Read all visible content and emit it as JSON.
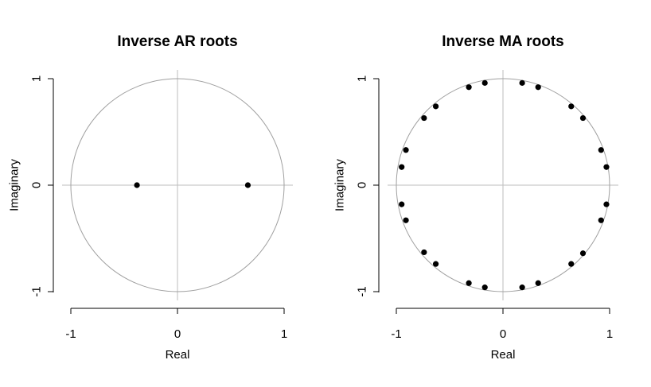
{
  "chart_data": [
    {
      "type": "scatter",
      "title": "Inverse AR roots",
      "xlabel": "Real",
      "ylabel": "Imaginary",
      "xlim": [
        -1,
        1
      ],
      "ylim": [
        -1,
        1
      ],
      "x_ticks": [
        "-1",
        "0",
        "1"
      ],
      "y_ticks": [
        "-1",
        "0",
        "1"
      ],
      "unit_circle": true,
      "reference_lines": true,
      "colors": {
        "points": "#000000",
        "circle": "#a0a0a0",
        "axes": "#000000"
      },
      "points": [
        {
          "x": -0.38,
          "y": 0.0
        },
        {
          "x": 0.66,
          "y": 0.0
        }
      ]
    },
    {
      "type": "scatter",
      "title": "Inverse MA roots",
      "xlabel": "Real",
      "ylabel": "Imaginary",
      "xlim": [
        -1,
        1
      ],
      "ylim": [
        -1,
        1
      ],
      "x_ticks": [
        "-1",
        "0",
        "1"
      ],
      "y_ticks": [
        "-1",
        "0",
        "1"
      ],
      "unit_circle": true,
      "reference_lines": true,
      "colors": {
        "points": "#000000",
        "circle": "#a0a0a0",
        "axes": "#000000"
      },
      "points": [
        {
          "x": 0.18,
          "y": 0.96
        },
        {
          "x": 0.33,
          "y": 0.92
        },
        {
          "x": 0.64,
          "y": 0.74
        },
        {
          "x": 0.75,
          "y": 0.63
        },
        {
          "x": 0.92,
          "y": 0.33
        },
        {
          "x": 0.97,
          "y": 0.17
        },
        {
          "x": 0.97,
          "y": -0.18
        },
        {
          "x": 0.92,
          "y": -0.33
        },
        {
          "x": 0.75,
          "y": -0.64
        },
        {
          "x": 0.64,
          "y": -0.74
        },
        {
          "x": 0.33,
          "y": -0.92
        },
        {
          "x": 0.18,
          "y": -0.96
        },
        {
          "x": -0.17,
          "y": -0.96
        },
        {
          "x": -0.32,
          "y": -0.92
        },
        {
          "x": -0.63,
          "y": -0.74
        },
        {
          "x": -0.74,
          "y": -0.63
        },
        {
          "x": -0.91,
          "y": -0.33
        },
        {
          "x": -0.95,
          "y": -0.18
        },
        {
          "x": -0.95,
          "y": 0.17
        },
        {
          "x": -0.91,
          "y": 0.33
        },
        {
          "x": -0.74,
          "y": 0.63
        },
        {
          "x": -0.63,
          "y": 0.74
        },
        {
          "x": -0.32,
          "y": 0.92
        },
        {
          "x": -0.17,
          "y": 0.96
        }
      ]
    }
  ]
}
